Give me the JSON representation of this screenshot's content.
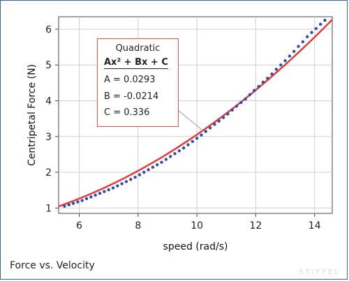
{
  "caption": "Force vs. Velocity",
  "watermark": "STIFFEL",
  "fit": {
    "title": "Quadratic",
    "equation": "Ax² + Bx + C",
    "a_text": "A = 0.0293",
    "b_text": "B = -0.0214",
    "c_text": "C = 0.336"
  },
  "colors": {
    "points": "#2f4fa8",
    "fit_line": "#e33b3b",
    "grid": "#cfcfcf",
    "box_border": "#d9534f"
  },
  "chart_data": {
    "type": "scatter",
    "title": "",
    "xlabel": "speed (rad/s)",
    "ylabel": "Centripetal Force (N)",
    "xlim": [
      5.3,
      14.6
    ],
    "ylim": [
      0.85,
      6.35
    ],
    "xticks": [
      6,
      8,
      10,
      12,
      14
    ],
    "yticks": [
      1,
      2,
      3,
      4,
      5,
      6
    ],
    "grid": true,
    "fit": {
      "model": "quadratic",
      "A": 0.0293,
      "B": -0.0214,
      "C": 0.336,
      "x_range": [
        5.3,
        14.6
      ]
    },
    "series": [
      {
        "x": [
          5.5,
          5.65,
          5.8,
          5.95,
          6.1,
          6.25,
          6.4,
          6.55,
          6.7,
          6.85,
          7.0,
          7.15,
          7.3,
          7.45,
          7.6,
          7.75,
          7.9,
          8.05,
          8.2,
          8.35,
          8.5,
          8.65,
          8.8,
          8.95,
          9.1,
          9.25,
          9.4,
          9.55,
          9.7,
          9.85,
          10.0,
          10.15,
          10.3,
          10.45,
          10.6,
          10.75,
          10.9,
          11.05,
          11.2,
          11.35,
          11.5,
          11.65,
          11.8,
          11.95,
          12.1,
          12.25,
          12.4,
          12.55,
          12.7,
          12.85,
          13.0,
          13.15,
          13.3,
          13.45,
          13.6,
          13.75,
          13.9,
          14.05,
          14.2,
          14.35
        ],
        "y": [
          1.05,
          1.09,
          1.13,
          1.17,
          1.21,
          1.26,
          1.31,
          1.36,
          1.41,
          1.46,
          1.51,
          1.56,
          1.62,
          1.68,
          1.74,
          1.8,
          1.86,
          1.93,
          2.0,
          2.07,
          2.14,
          2.21,
          2.28,
          2.36,
          2.44,
          2.52,
          2.6,
          2.68,
          2.77,
          2.86,
          2.95,
          3.04,
          3.14,
          3.24,
          3.34,
          3.43,
          3.53,
          3.63,
          3.74,
          3.85,
          3.95,
          4.05,
          4.17,
          4.29,
          4.4,
          4.52,
          4.63,
          4.75,
          4.88,
          5.0,
          5.12,
          5.25,
          5.38,
          5.52,
          5.65,
          5.79,
          5.91,
          6.02,
          6.14,
          6.25
        ]
      }
    ]
  }
}
